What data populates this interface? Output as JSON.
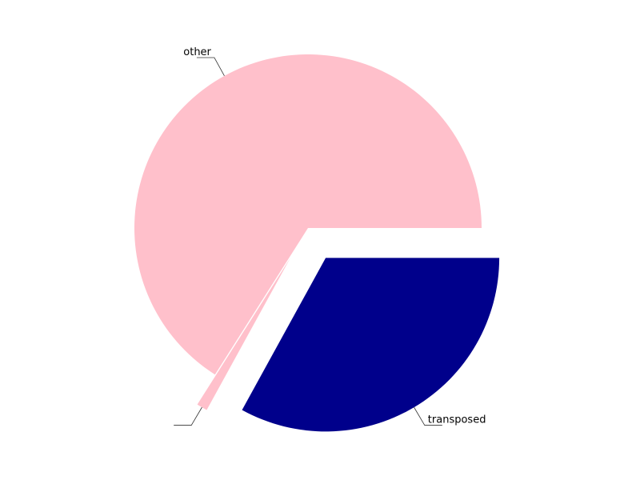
{
  "chart_data": {
    "type": "pie",
    "title": "",
    "slices": [
      {
        "label": "other",
        "value": 66.0,
        "color": "#ffc0cb",
        "explode": 0.0
      },
      {
        "label": "",
        "value": 1.0,
        "color": "#ffc0cb",
        "explode": 0.2
      },
      {
        "label": "transposed",
        "value": 33.0,
        "color": "#00008b",
        "explode": 0.2
      }
    ],
    "start_angle_deg": 0,
    "direction": "counterclockwise",
    "legend": "none"
  }
}
